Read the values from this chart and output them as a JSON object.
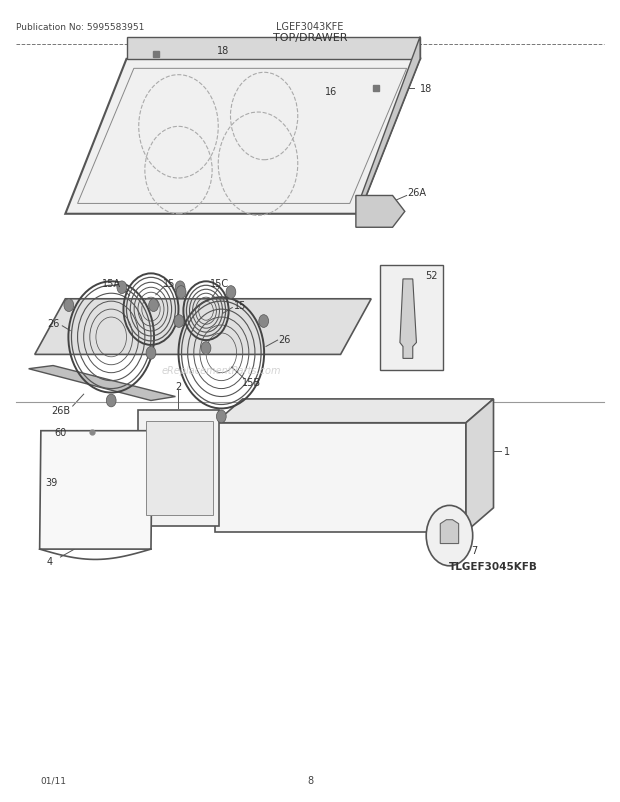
{
  "title": "TOP/DRAWER",
  "model": "LGEF3043KFE",
  "pub_no": "Publication No: 5995583951",
  "date": "01/11",
  "page": "8",
  "watermark": "eReplacementParts.com",
  "sub_model": "TLGEF3045KFB",
  "bg_color": "#ffffff",
  "line_color": "#555555",
  "text_color": "#333333"
}
